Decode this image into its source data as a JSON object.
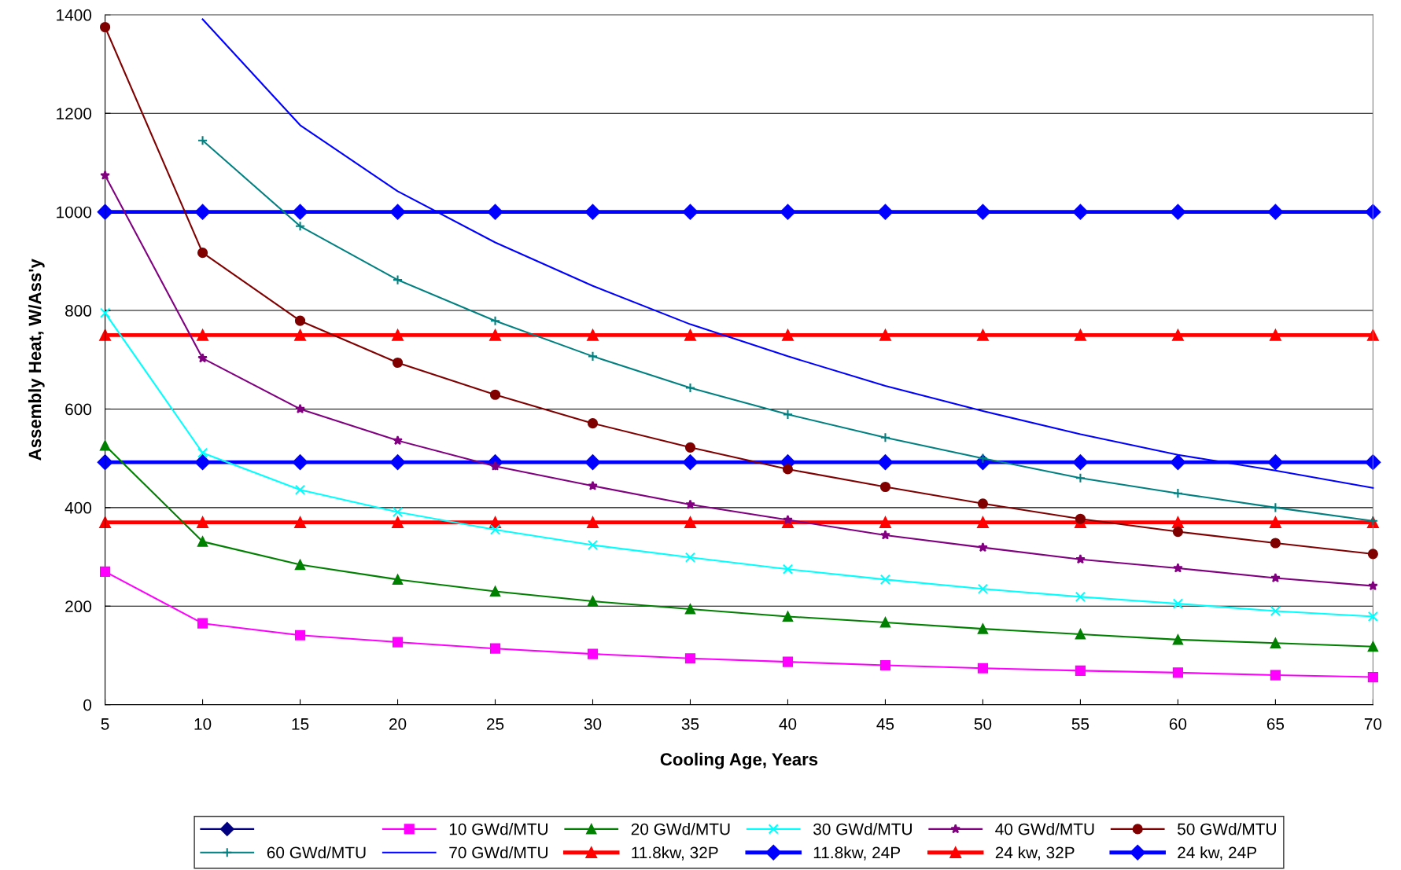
{
  "chart_data": {
    "type": "line",
    "xlabel": "Cooling Age, Years",
    "ylabel": "Assembly Heat, W/Ass'y",
    "x": [
      5,
      10,
      15,
      20,
      25,
      30,
      35,
      40,
      45,
      50,
      55,
      60,
      65,
      70
    ],
    "xlim": [
      5,
      70
    ],
    "xticks": [
      5,
      10,
      15,
      20,
      25,
      30,
      35,
      40,
      45,
      50,
      55,
      60,
      65,
      70
    ],
    "ylim": [
      0,
      1400
    ],
    "yticks": [
      0,
      200,
      400,
      600,
      800,
      1000,
      1200,
      1400
    ],
    "grid": "y",
    "legend": "bottom",
    "series": [
      {
        "color": "#000080",
        "marker": "diamond",
        "values": [
          null,
          null,
          null,
          null,
          null,
          null,
          null,
          null,
          null,
          null,
          null,
          null,
          null,
          null
        ]
      },
      {
        "name": "10 GWd/MTU",
        "color": "#ff00ff",
        "marker": "square",
        "values": [
          270,
          165,
          141,
          127,
          114,
          103,
          94,
          87,
          80,
          74,
          69,
          65,
          60,
          56
        ]
      },
      {
        "name": "20 GWd/MTU",
        "color": "#008000",
        "marker": "triangle",
        "values": [
          526,
          331,
          284,
          254,
          230,
          210,
          194,
          179,
          167,
          154,
          143,
          132,
          125,
          118
        ]
      },
      {
        "name": "30 GWd/MTU",
        "color": "#00ffff",
        "marker": "cross",
        "values": [
          795,
          511,
          436,
          391,
          355,
          324,
          299,
          275,
          254,
          235,
          219,
          205,
          190,
          179
        ]
      },
      {
        "name": "40 GWd/MTU",
        "color": "#800080",
        "marker": "star",
        "values": [
          1074,
          703,
          600,
          536,
          484,
          444,
          406,
          375,
          344,
          319,
          295,
          277,
          257,
          241
        ]
      },
      {
        "name": "50 GWd/MTU",
        "color": "#800000",
        "marker": "circle",
        "values": [
          1375,
          917,
          779,
          694,
          629,
          571,
          522,
          478,
          442,
          408,
          377,
          351,
          328,
          306
        ]
      },
      {
        "name": "60 GWd/MTU",
        "color": "#008080",
        "marker": "plus",
        "values": [
          null,
          1145,
          971,
          862,
          779,
          707,
          643,
          589,
          542,
          500,
          460,
          429,
          400,
          373
        ]
      },
      {
        "name": "70 GWd/MTU",
        "color": "#0000ff",
        "marker": "none",
        "values": [
          null,
          1391,
          1176,
          1042,
          938,
          850,
          772,
          707,
          647,
          596,
          549,
          507,
          475,
          440
        ]
      },
      {
        "name": "11.8kw, 32P",
        "color": "#ff0000",
        "marker": "triangle",
        "values": [
          370,
          370,
          370,
          370,
          370,
          370,
          370,
          370,
          370,
          370,
          370,
          370,
          370,
          370
        ]
      },
      {
        "name": "11.8kw, 24P",
        "color": "#0000ff",
        "marker": "diamond",
        "values": [
          492,
          492,
          492,
          492,
          492,
          492,
          492,
          492,
          492,
          492,
          492,
          492,
          492,
          492
        ]
      },
      {
        "name": "24 kw, 32P",
        "color": "#ff0000",
        "marker": "triangle",
        "values": [
          750,
          750,
          750,
          750,
          750,
          750,
          750,
          750,
          750,
          750,
          750,
          750,
          750,
          750
        ]
      },
      {
        "name": "24 kw, 24P",
        "color": "#0000ff",
        "marker": "diamond",
        "values": [
          1000,
          1000,
          1000,
          1000,
          1000,
          1000,
          1000,
          1000,
          1000,
          1000,
          1000,
          1000,
          1000,
          1000
        ]
      }
    ]
  }
}
